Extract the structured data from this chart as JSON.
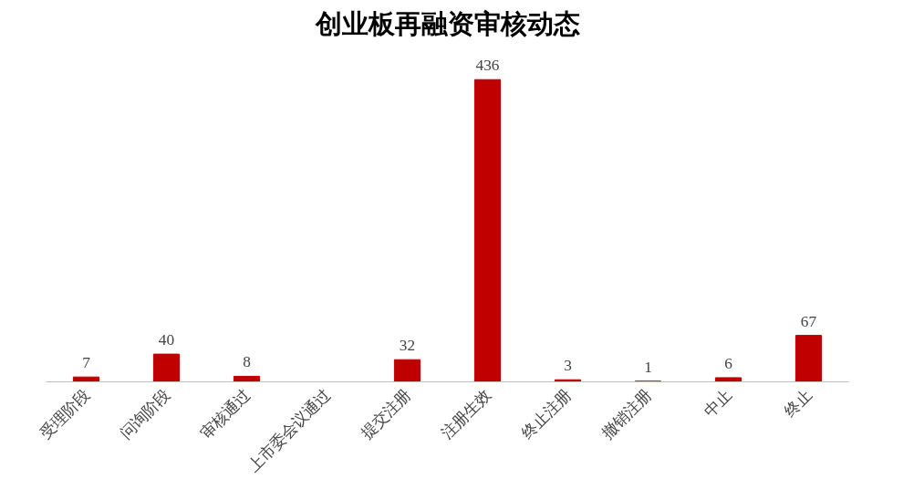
{
  "chart_data": {
    "type": "bar",
    "title": "创业板再融资审核动态",
    "categories": [
      "受理阶段",
      "问询阶段",
      "审核通过",
      "上市委会议通过",
      "提交注册",
      "注册生效",
      "终止注册",
      "撤销注册",
      "中止",
      "终止"
    ],
    "values": [
      7,
      40,
      8,
      null,
      32,
      436,
      3,
      1,
      6,
      67
    ],
    "value_labels": [
      "7",
      "40",
      "8",
      null,
      "32",
      "436",
      "3",
      "1",
      "6",
      "67"
    ],
    "color": "#c00000",
    "grid": false
  }
}
